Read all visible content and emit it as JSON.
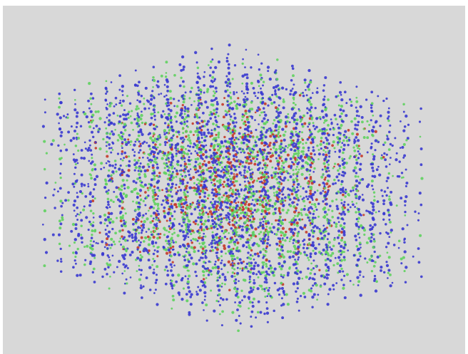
{
  "scene": {
    "subject": "point-cloud-cube",
    "background_color": "#d8d8d8",
    "frame_color": "#ffffff",
    "point_colors": {
      "blue": "#3a3ad0",
      "green": "#5fd25f",
      "red": "#c43a2a"
    }
  }
}
